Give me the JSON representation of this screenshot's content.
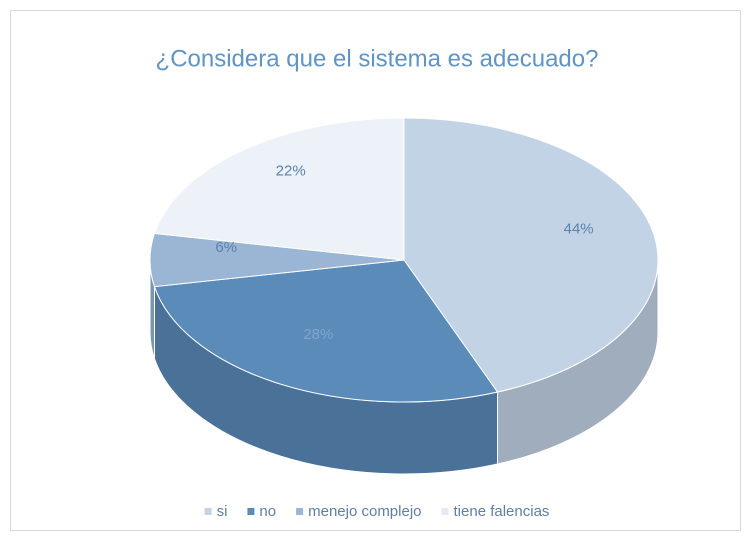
{
  "chart_data": {
    "type": "pie",
    "title": "¿Considera que el sistema es adecuado?",
    "categories": [
      "si",
      "no",
      "menejo complejo",
      "tiene falencias"
    ],
    "values": [
      44,
      28,
      6,
      22
    ],
    "value_labels": [
      "44%",
      "28%",
      "6%",
      "22%"
    ],
    "colors": [
      "#c3d3e6",
      "#5a8bb9",
      "#9ab6d4",
      "#edf1f8"
    ],
    "legend": "bottom"
  }
}
